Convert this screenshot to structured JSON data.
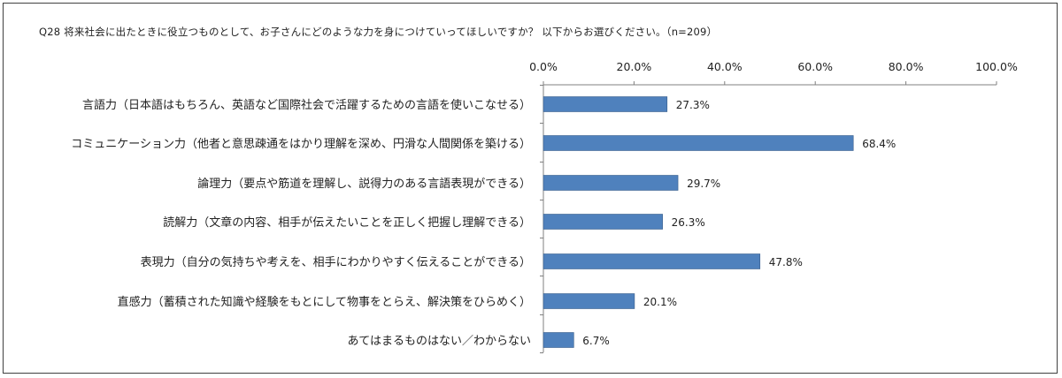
{
  "chart_data": {
    "type": "bar",
    "orientation": "horizontal",
    "title": "Q28 将来社会に出たときに役立つものとして、お子さんにどのような力を身につけていってほしいですか？ 以下からお選びください。（n=209）",
    "categories": [
      "言語力（日本語はもちろん、英語など国際社会で活躍するための言語を使いこなせる）",
      "コミュニケーション力（他者と意思疎通をはかり理解を深め、円滑な人間関係を築ける）",
      "論理力（要点や筋道を理解し、説得力のある言語表現ができる）",
      "読解力（文章の内容、相手が伝えたいことを正しく把握し理解できる）",
      "表現力（自分の気持ちや考えを、相手にわかりやすく伝えることができる）",
      "直感力（蓄積された知識や経験をもとにして物事をとらえ、解決策をひらめく）",
      "あてはまるものはない／わからない"
    ],
    "values": [
      27.3,
      68.4,
      29.7,
      26.3,
      47.8,
      20.1,
      6.7
    ],
    "value_labels": [
      "27.3%",
      "68.4%",
      "29.7%",
      "26.3%",
      "47.8%",
      "20.1%",
      "6.7%"
    ],
    "xlim": [
      0,
      100
    ],
    "ticks": [
      0,
      20,
      40,
      60,
      80,
      100
    ],
    "tick_labels": [
      "0.0%",
      "20.0%",
      "40.0%",
      "60.0%",
      "80.0%",
      "100.0%"
    ],
    "axis_position": "top",
    "grid": false,
    "bar_color": "#4F81BD",
    "bar_border_color": "#385D8A"
  }
}
